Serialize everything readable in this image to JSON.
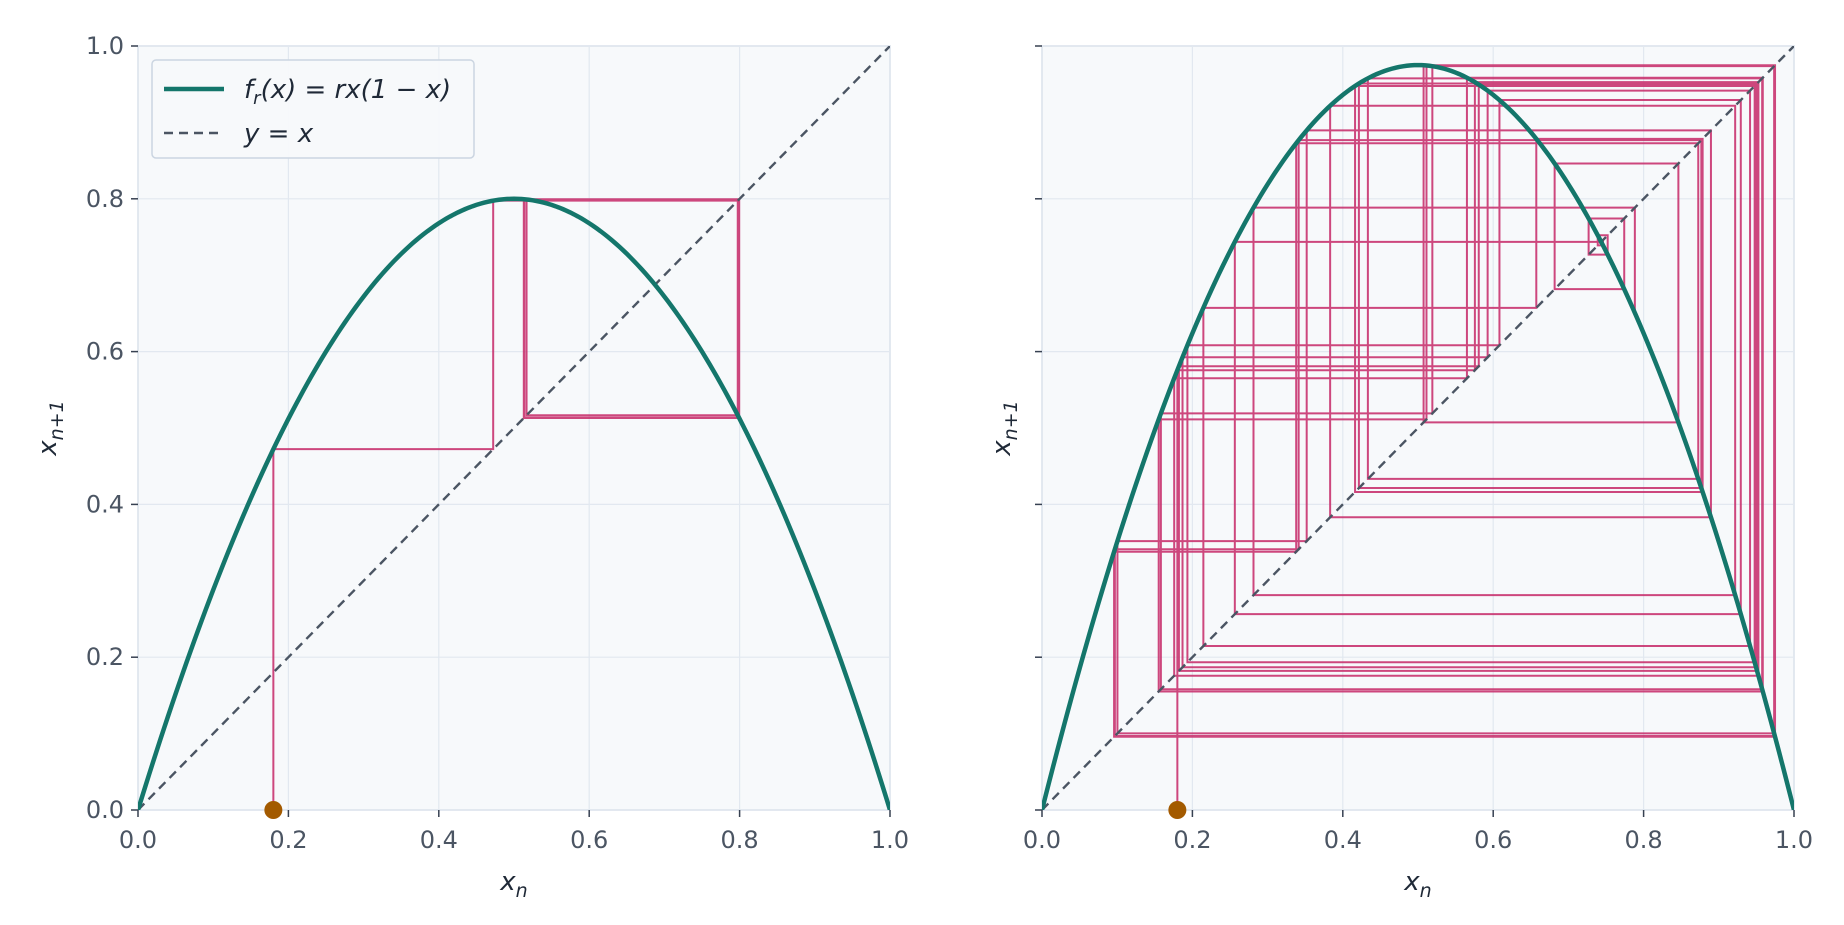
{
  "chart_data": [
    {
      "type": "line",
      "title": "",
      "xlabel": "x_n",
      "ylabel": "x_{n+1}",
      "xlim": [
        0,
        1
      ],
      "ylim": [
        0,
        1
      ],
      "xticks": [
        "0.0",
        "0.2",
        "0.4",
        "0.6",
        "0.8",
        "1.0"
      ],
      "yticks": [
        "0.0",
        "0.2",
        "0.4",
        "0.6",
        "0.8",
        "1.0"
      ],
      "grid": true,
      "r": 3.2,
      "x0": 0.18,
      "iterations": 40,
      "legend": {
        "position": "top-left",
        "entries": [
          "f_r(x) = rx(1 − x)",
          "y = x"
        ]
      },
      "series": [
        {
          "name": "f_r(x) = rx(1 − x)",
          "kind": "parabola",
          "color": "#14766b"
        },
        {
          "name": "y = x",
          "kind": "diagonal",
          "color": "#4b5563"
        },
        {
          "kind": "cobweb",
          "color": "#c8336f"
        },
        {
          "kind": "start-point",
          "x": 0.18,
          "y": 0,
          "color": "#a35a00"
        }
      ]
    },
    {
      "type": "line",
      "title": "",
      "xlabel": "x_n",
      "ylabel": "x_{n+1}",
      "xlim": [
        0,
        1
      ],
      "ylim": [
        0,
        1
      ],
      "xticks": [
        "0.0",
        "0.2",
        "0.4",
        "0.6",
        "0.8",
        "1.0"
      ],
      "grid": true,
      "r": 3.9,
      "x0": 0.18,
      "iterations": 60,
      "series": [
        {
          "kind": "parabola",
          "color": "#14766b"
        },
        {
          "kind": "diagonal",
          "color": "#4b5563"
        },
        {
          "kind": "cobweb",
          "color": "#c8336f"
        },
        {
          "kind": "start-point",
          "x": 0.18,
          "y": 0,
          "color": "#a35a00"
        }
      ]
    }
  ]
}
